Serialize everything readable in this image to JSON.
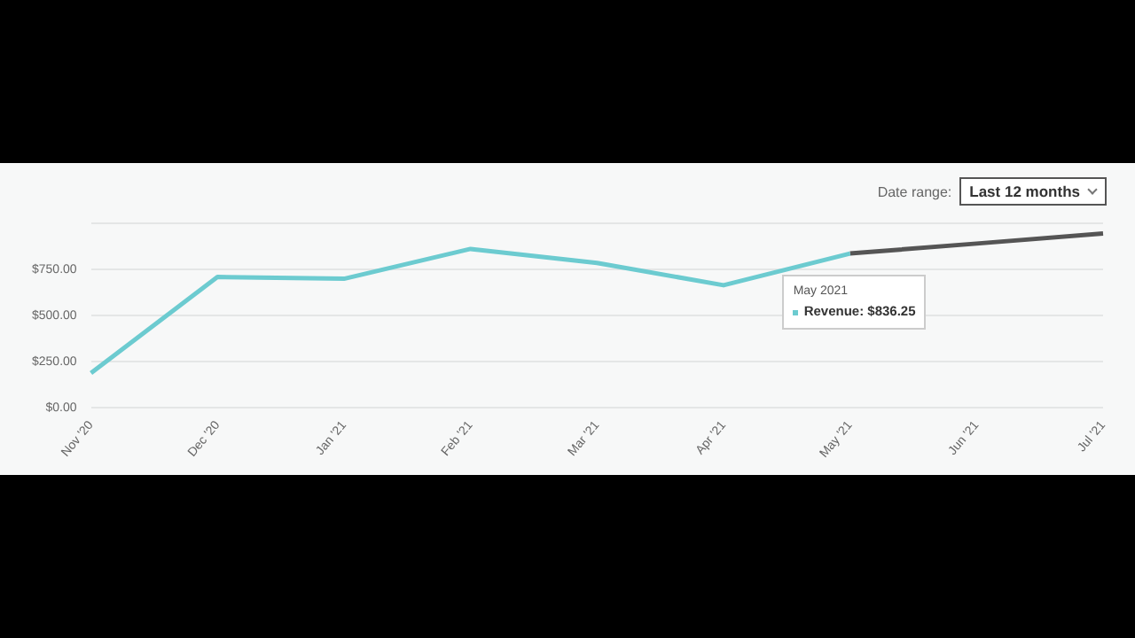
{
  "chart_data": {
    "type": "line",
    "categories": [
      "Nov '20",
      "Dec '20",
      "Jan '21",
      "Feb '21",
      "Mar '21",
      "Apr '21",
      "May '21",
      "Jun '21",
      "Jul '21"
    ],
    "series": [
      {
        "color": "#6ccbd0",
        "values": [
          187,
          709,
          699,
          861,
          785,
          664,
          836.25,
          null,
          null
        ]
      },
      {
        "color": "#555555",
        "values": [
          null,
          null,
          null,
          null,
          null,
          null,
          836.25,
          890,
          945
        ]
      }
    ],
    "ylim": [
      0,
      1000
    ],
    "yticks": [
      {
        "value": 0,
        "label": "$0.00"
      },
      {
        "value": 250,
        "label": "$250.00"
      },
      {
        "value": 500,
        "label": "$500.00"
      },
      {
        "value": 750,
        "label": "$750.00"
      },
      {
        "value": 1000,
        "label": null
      }
    ],
    "grid": "y",
    "legend": false,
    "marker": "none",
    "annotations": [
      "Date range:",
      "Last 12 months",
      {
        "text": "May 2021",
        "x": "May '21",
        "y": 836.25
      },
      "Revenue: $836.25"
    ]
  }
}
